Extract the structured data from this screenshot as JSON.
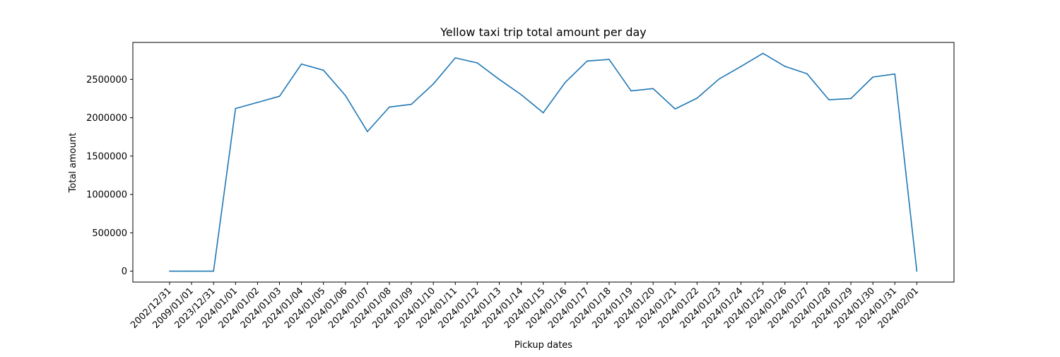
{
  "chart_data": {
    "type": "line",
    "title": "Yellow taxi trip total amount per day",
    "xlabel": "Pickup dates",
    "ylabel": "Total amount",
    "categories": [
      "2002/12/31",
      "2009/01/01",
      "2023/12/31",
      "2024/01/01",
      "2024/01/02",
      "2024/01/03",
      "2024/01/04",
      "2024/01/05",
      "2024/01/06",
      "2024/01/07",
      "2024/01/08",
      "2024/01/09",
      "2024/01/10",
      "2024/01/11",
      "2024/01/12",
      "2024/01/13",
      "2024/01/14",
      "2024/01/15",
      "2024/01/16",
      "2024/01/17",
      "2024/01/18",
      "2024/01/19",
      "2024/01/20",
      "2024/01/21",
      "2024/01/22",
      "2024/01/23",
      "2024/01/24",
      "2024/01/25",
      "2024/01/26",
      "2024/01/27",
      "2024/01/28",
      "2024/01/29",
      "2024/01/30",
      "2024/01/31",
      "2024/02/01"
    ],
    "series": [
      {
        "values": [
          0,
          0,
          0,
          2120000,
          2200000,
          2280000,
          2700000,
          2620000,
          2290000,
          1820000,
          2140000,
          2175000,
          2440000,
          2780000,
          2715000,
          2500000,
          2300000,
          2065000,
          2460000,
          2740000,
          2760000,
          2350000,
          2380000,
          2115000,
          2255000,
          2505000,
          2670000,
          2840000,
          2670000,
          2575000,
          2235000,
          2250000,
          2530000,
          2570000,
          0
        ],
        "color": "#1f77b4"
      }
    ],
    "yticks": [
      0,
      500000,
      1000000,
      1500000,
      2000000,
      2500000
    ],
    "ytick_labels": [
      "0",
      "500000",
      "1000000",
      "1500000",
      "2000000",
      "2500000"
    ],
    "ylim": [
      -142000,
      2982000
    ],
    "grid": false,
    "legend": "none"
  }
}
